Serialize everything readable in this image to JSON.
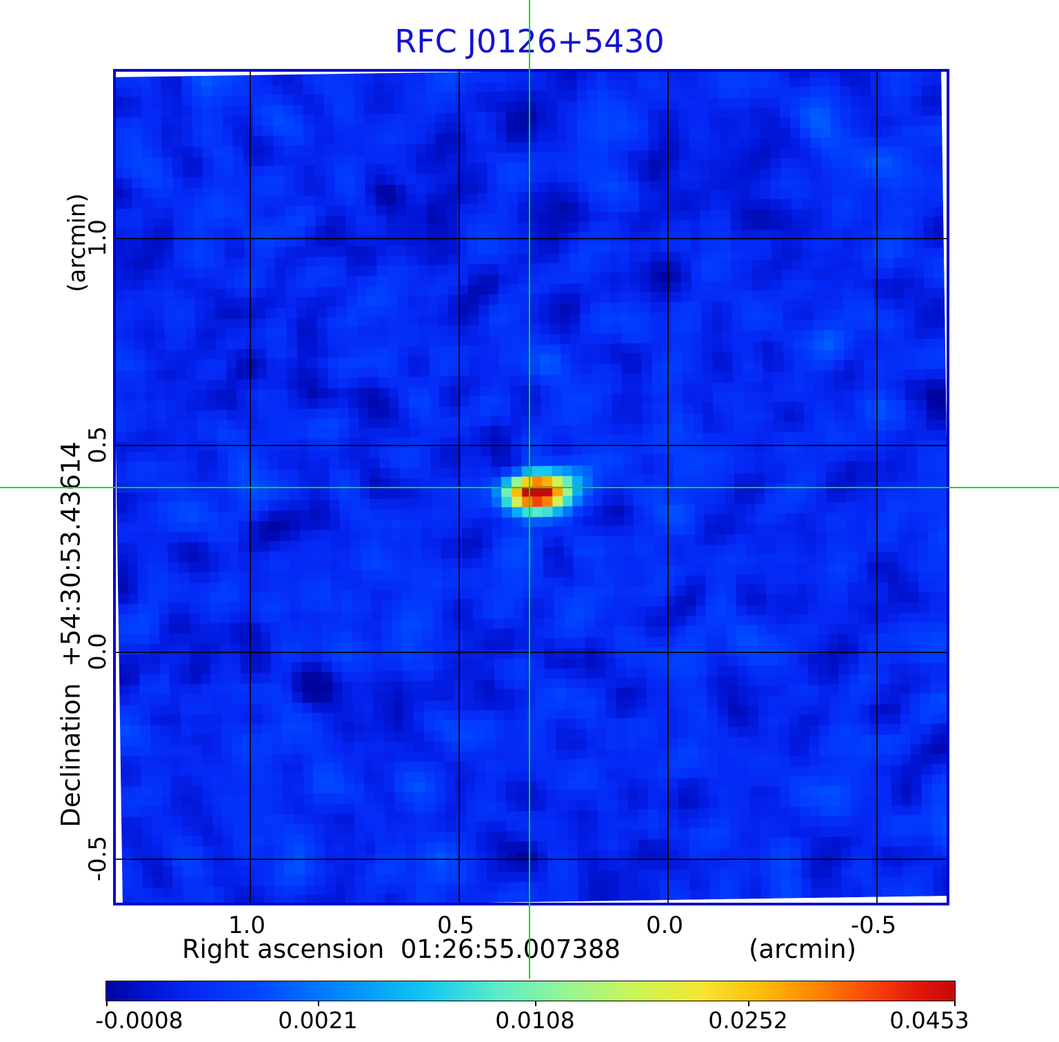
{
  "chart_data": {
    "type": "heatmap",
    "title": "RFC J0126+5430",
    "title_color": "#1414d2",
    "frame_color": "#0202cc",
    "grid": true,
    "grid_color": "#000000",
    "x_axis": {
      "label": "Right ascension  01:26:55.007388",
      "unit": "(arcmin)",
      "tick_labels": [
        "1.0",
        "0.5",
        "0.0",
        "-0.5"
      ],
      "range_arcmin": [
        1.31,
        -0.67
      ]
    },
    "y_axis": {
      "label": "Declination  +54:30:53.43614",
      "unit": "(arcmin)",
      "tick_labels": [
        "1.0",
        "0.5",
        "0.0",
        "-0.5"
      ],
      "range_arcmin": [
        -0.61,
        1.4
      ]
    },
    "colorbar": {
      "tick_labels": [
        "-0.0008",
        "0.0021",
        "0.0108",
        "0.0252",
        "0.0453"
      ],
      "min": -0.0008,
      "max": 0.0453,
      "colormap": "jet",
      "stops": [
        [
          0,
          "#0005a0"
        ],
        [
          0.05,
          "#0014d2"
        ],
        [
          0.1,
          "#0528f5"
        ],
        [
          0.18,
          "#0046ff"
        ],
        [
          0.28,
          "#008cff"
        ],
        [
          0.38,
          "#14c8f0"
        ],
        [
          0.46,
          "#5aebc8"
        ],
        [
          0.54,
          "#96f596"
        ],
        [
          0.62,
          "#c8f55a"
        ],
        [
          0.7,
          "#f5e632"
        ],
        [
          0.77,
          "#ffbe0a"
        ],
        [
          0.84,
          "#ff8200"
        ],
        [
          0.9,
          "#fa460a"
        ],
        [
          0.96,
          "#e1140a"
        ],
        [
          1,
          "#c30a0a"
        ]
      ]
    },
    "source": {
      "peak_value": 0.0453,
      "offset_ra_arcmin": 0.32,
      "offset_dec_arcmin": 0.39
    },
    "crosshair": {
      "color": "#00dc00",
      "ra_arcmin": 0.32,
      "dec_arcmin": 0.39
    },
    "background_noise_color": "#0d2ff2"
  }
}
